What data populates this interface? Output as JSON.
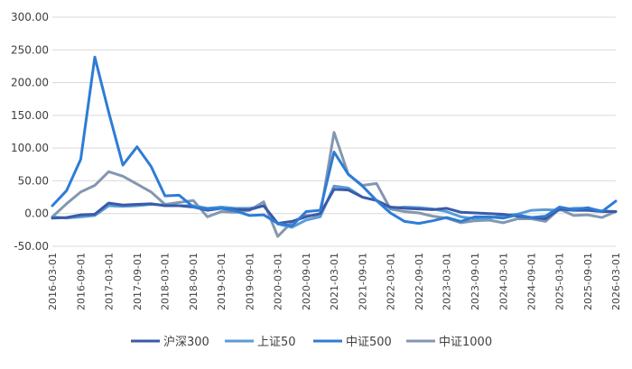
{
  "chart_data": {
    "type": "line",
    "y_ticks": [
      "300.00",
      "250.00",
      "200.00",
      "150.00",
      "100.00",
      "50.00",
      "0.00",
      "-50.00"
    ],
    "ylim": [
      -50,
      300
    ],
    "x_ticks": [
      "2016-03-01",
      "2016-09-01",
      "2017-03-01",
      "2017-09-01",
      "2018-03-01",
      "2018-09-01",
      "2019-03-01",
      "2019-09-01",
      "2020-03-01",
      "2020-09-01",
      "2021-03-01",
      "2021-09-01",
      "2022-03-01",
      "2022-09-01",
      "2023-03-01",
      "2023-09-01",
      "2024-03-01",
      "2024-09-01",
      "2025-03-01",
      "2025-09-01",
      "2026-03-01"
    ],
    "x": [
      "2016-03-01",
      "2016-06-01",
      "2016-09-01",
      "2016-12-01",
      "2017-03-01",
      "2017-06-01",
      "2017-09-01",
      "2017-12-01",
      "2018-03-01",
      "2018-06-01",
      "2018-09-01",
      "2018-12-01",
      "2019-03-01",
      "2019-06-01",
      "2019-09-01",
      "2019-12-01",
      "2020-03-01",
      "2020-06-01",
      "2020-09-01",
      "2020-12-01",
      "2021-03-01",
      "2021-06-01",
      "2021-09-01",
      "2021-12-01",
      "2022-03-01",
      "2022-06-01",
      "2022-09-01",
      "2022-12-01",
      "2023-03-01",
      "2023-06-01",
      "2023-09-01",
      "2023-12-01",
      "2024-03-01",
      "2024-06-01",
      "2024-09-01",
      "2024-12-01",
      "2025-03-01",
      "2025-06-01",
      "2025-09-01",
      "2025-12-01",
      "2026-03-01"
    ],
    "grid": true,
    "legend_position": "bottom",
    "series": [
      {
        "name": "沪深300",
        "color": "#3a5ba8",
        "values": [
          -7,
          -6,
          -2,
          -1,
          16,
          13,
          14,
          15,
          12,
          12,
          10,
          5,
          8,
          6,
          6,
          12,
          -15,
          -12,
          -5,
          0,
          37,
          36,
          25,
          20,
          10,
          8,
          7,
          6,
          8,
          2,
          1,
          0,
          -1,
          -4,
          -6,
          -8,
          7,
          5,
          5,
          3,
          3
        ]
      },
      {
        "name": "上证50",
        "color": "#5b9bd5",
        "values": [
          -5,
          -7,
          -5,
          -3,
          12,
          11,
          12,
          14,
          13,
          12,
          12,
          8,
          10,
          8,
          8,
          12,
          -16,
          -21,
          -10,
          -5,
          42,
          39,
          25,
          20,
          8,
          10,
          9,
          7,
          3,
          -5,
          -8,
          -7,
          -3,
          -1,
          5,
          6,
          5,
          8,
          8,
          4,
          3
        ]
      },
      {
        "name": "中证500",
        "color": "#2e7cd6",
        "values": [
          12,
          35,
          83,
          239,
          155,
          74,
          102,
          72,
          27,
          28,
          10,
          7,
          8,
          4,
          -3,
          -2,
          -15,
          -19,
          3,
          5,
          94,
          60,
          42,
          20,
          1,
          -12,
          -15,
          -11,
          -6,
          -12,
          -5,
          -5,
          -7,
          -2,
          -6,
          -4,
          10,
          6,
          9,
          3,
          19
        ]
      },
      {
        "name": "中证1000",
        "color": "#8497b0",
        "values": [
          -5,
          15,
          33,
          43,
          64,
          57,
          45,
          33,
          14,
          17,
          20,
          -5,
          3,
          2,
          5,
          18,
          -35,
          -13,
          -3,
          -3,
          124,
          60,
          43,
          46,
          7,
          3,
          1,
          -4,
          -7,
          -14,
          -11,
          -10,
          -14,
          -8,
          -8,
          -12,
          7,
          -3,
          -2,
          -6,
          3
        ]
      }
    ]
  }
}
